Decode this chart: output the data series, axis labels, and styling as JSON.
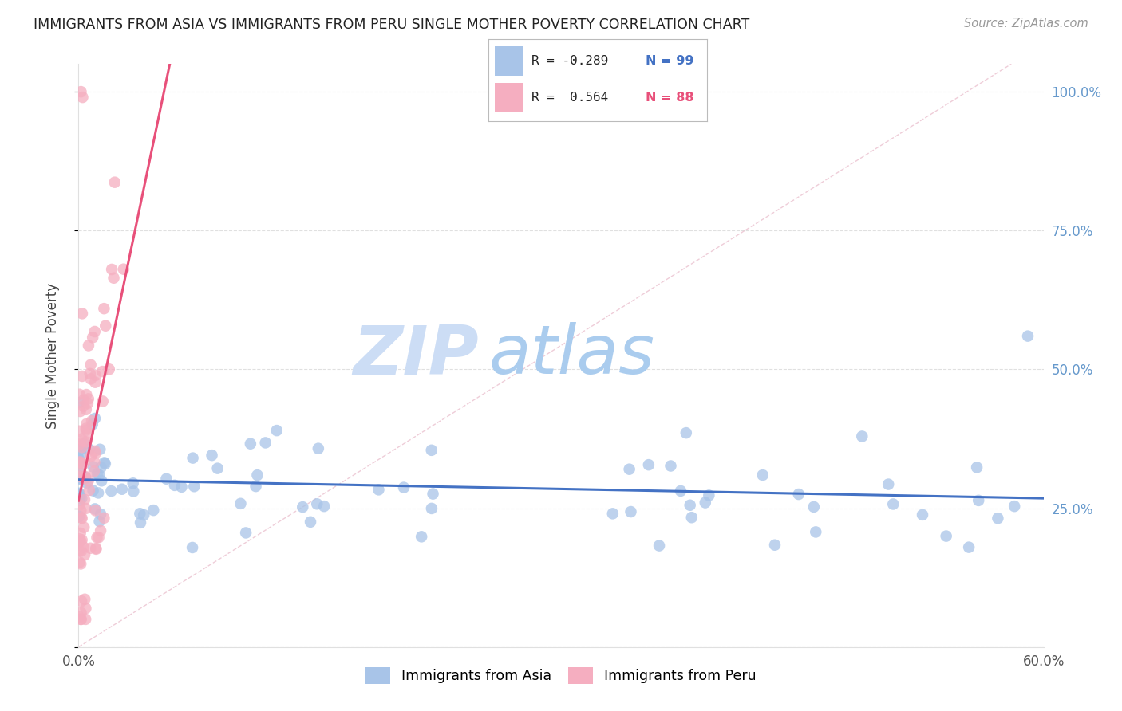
{
  "title": "IMMIGRANTS FROM ASIA VS IMMIGRANTS FROM PERU SINGLE MOTHER POVERTY CORRELATION CHART",
  "source": "Source: ZipAtlas.com",
  "ylabel": "Single Mother Poverty",
  "legend_label_asia": "Immigrants from Asia",
  "legend_label_peru": "Immigrants from Peru",
  "R_asia": -0.289,
  "N_asia": 99,
  "R_peru": 0.564,
  "N_peru": 88,
  "color_asia": "#a8c4e8",
  "color_peru": "#f5aec0",
  "trendline_asia": "#4472c4",
  "trendline_peru": "#e8507a",
  "diag_color": "#e8b8c8",
  "watermark_zip_color": "#ccddf5",
  "watermark_atlas_color": "#aaccee",
  "background_color": "#ffffff",
  "grid_color": "#e0e0e0",
  "title_color": "#222222",
  "right_axis_color": "#6699cc",
  "xlim": [
    0.0,
    0.6
  ],
  "ylim": [
    0.0,
    1.05
  ],
  "asia_seed": 77,
  "peru_seed": 99
}
